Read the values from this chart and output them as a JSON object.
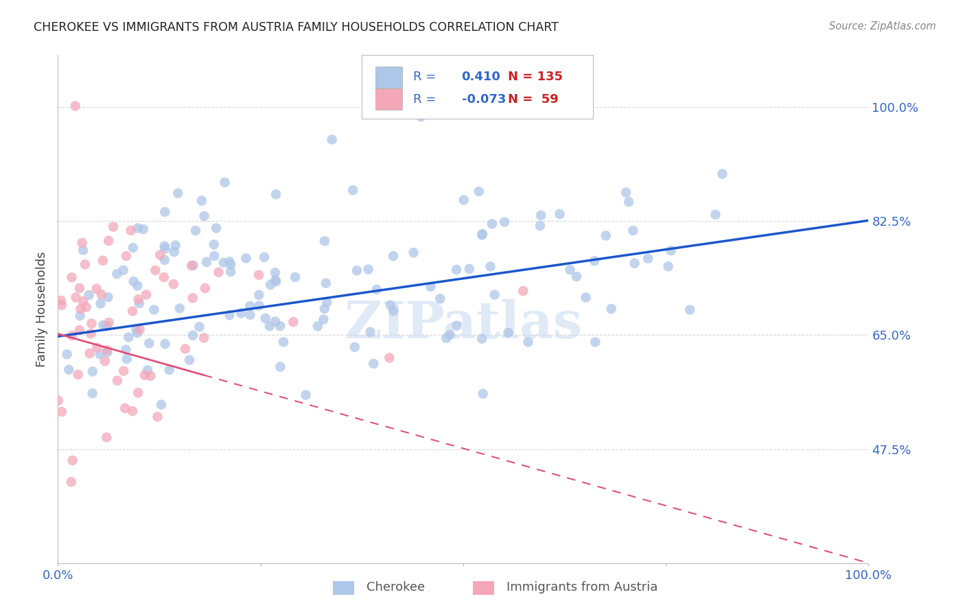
{
  "title": "CHEROKEE VS IMMIGRANTS FROM AUSTRIA FAMILY HOUSEHOLDS CORRELATION CHART",
  "source": "Source: ZipAtlas.com",
  "ylabel": "Family Households",
  "xlim": [
    0.0,
    1.0
  ],
  "ylim": [
    0.3,
    1.08
  ],
  "yticks": [
    0.475,
    0.65,
    0.825,
    1.0
  ],
  "ytick_labels": [
    "47.5%",
    "65.0%",
    "82.5%",
    "100.0%"
  ],
  "xticks": [
    0.0,
    0.25,
    0.5,
    0.75,
    1.0
  ],
  "xtick_labels": [
    "0.0%",
    "",
    "",
    "",
    "100.0%"
  ],
  "blue_R": 0.41,
  "blue_N": 135,
  "pink_R": -0.073,
  "pink_N": 59,
  "blue_color": "#aec6e8",
  "pink_color": "#f4a7b9",
  "blue_line_color": "#1a56cc",
  "pink_line_color": "#e0507a",
  "watermark": "ZIPatlas",
  "watermark_color": "#c8d8f0",
  "legend_label_blue": "Cherokee",
  "legend_label_pink": "Immigrants from Austria",
  "background_color": "#ffffff",
  "grid_color": "#cccccc",
  "title_color": "#222222",
  "tick_label_color": "#3366cc"
}
